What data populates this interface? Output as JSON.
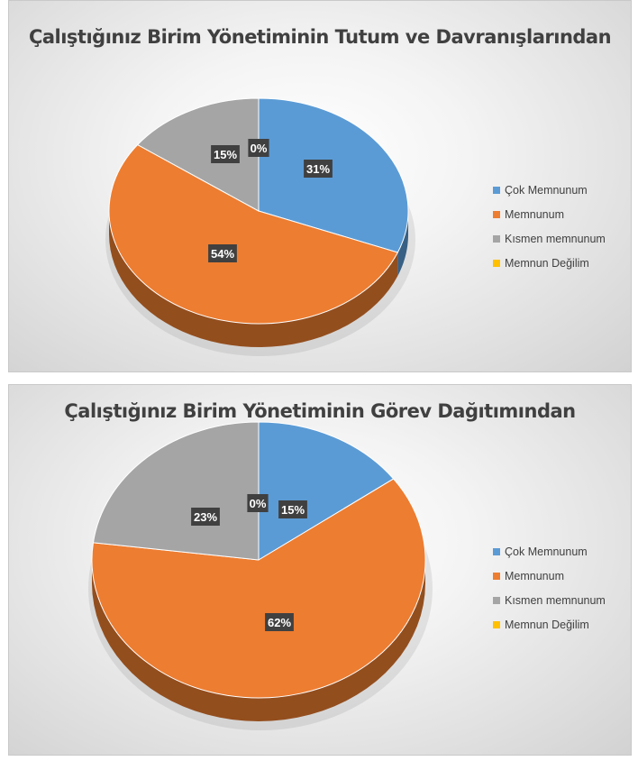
{
  "chart_data": [
    {
      "type": "pie",
      "title": "Çalıştığınız Birim Yönetiminin Tutum ve Davranışlarından",
      "categories": [
        "Çok Memnunum",
        "Memnunum",
        "Kısmen memnunum",
        "Memnun Değilim"
      ],
      "values": [
        31,
        54,
        15,
        0
      ],
      "labels": [
        "31%",
        "54%",
        "15%",
        "0%"
      ],
      "colors": [
        "#5b9bd5",
        "#ed7d31",
        "#a5a5a5",
        "#ffc000"
      ],
      "legend": "right"
    },
    {
      "type": "pie",
      "title": "Çalıştığınız Birim Yönetiminin Görev Dağıtımından",
      "categories": [
        "Çok Memnunum",
        "Memnunum",
        "Kısmen memnunum",
        "Memnun Değilim"
      ],
      "values": [
        15,
        62,
        23,
        0
      ],
      "labels": [
        "15%",
        "62%",
        "23%",
        "0%"
      ],
      "colors": [
        "#5b9bd5",
        "#ed7d31",
        "#a5a5a5",
        "#ffc000"
      ],
      "legend": "right"
    }
  ]
}
